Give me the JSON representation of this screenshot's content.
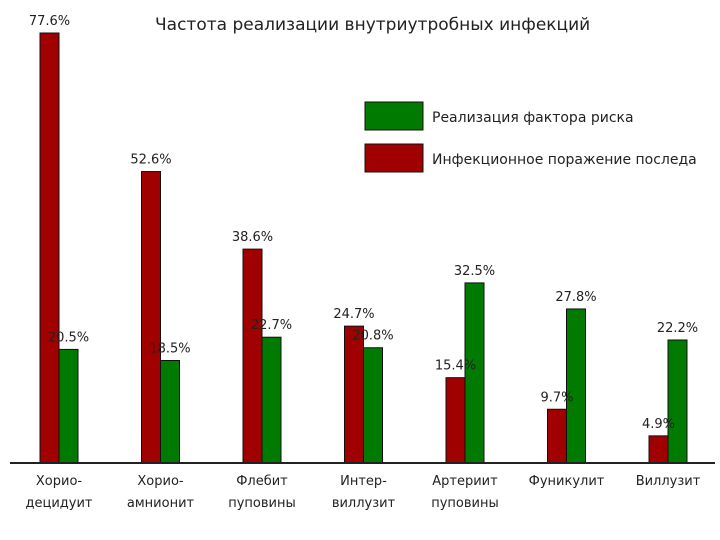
{
  "chart_data": {
    "type": "bar",
    "title": "Частота реализации внутриутробных инфекций",
    "categories": [
      [
        "Хорио-",
        "децидуит"
      ],
      [
        "Хорио-",
        "амнионит"
      ],
      [
        "Флебит",
        "пуповины"
      ],
      [
        "Интер-",
        "виллузит"
      ],
      [
        "Артериит",
        "пуповины"
      ],
      [
        "Фуникулит"
      ],
      [
        "Виллузит"
      ]
    ],
    "series": [
      {
        "name": "Инфекционное поражение последа",
        "color": "#a00000",
        "values": [
          77.6,
          52.6,
          38.6,
          24.7,
          15.4,
          9.7,
          4.9
        ],
        "labels": [
          "77.6%",
          "52.6%",
          "38.6%",
          "24.7%",
          "15.4%",
          "9.7%",
          "4.9%"
        ]
      },
      {
        "name": "Реализация фактора риска",
        "color": "#007a00",
        "values": [
          20.5,
          18.5,
          22.7,
          20.8,
          32.5,
          27.8,
          22.2
        ],
        "labels": [
          "20.5%",
          "18.5%",
          "22.7%",
          "20.8%",
          "32.5%",
          "27.8%",
          "22.2%"
        ]
      }
    ],
    "legend": {
      "placement": "top-right",
      "order": [
        "Реализация фактора риска",
        "Инфекционное поражение последа"
      ]
    },
    "ylim": [
      0,
      80
    ],
    "grid": false
  }
}
